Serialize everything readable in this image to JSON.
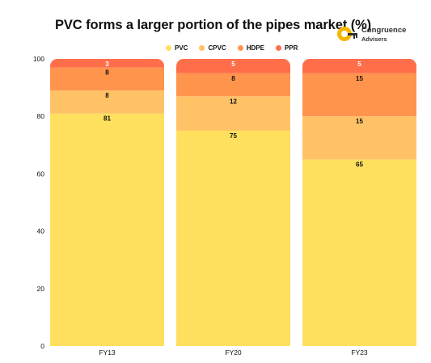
{
  "title": "PVC forms a larger portion of the pipes market (%)",
  "logo": {
    "name": "Congruence",
    "sub": "Advisers",
    "icon": "key-icon"
  },
  "colors": {
    "PVC": "#FFDF5E",
    "CPVC": "#FFC266",
    "HDPE": "#FF944D",
    "PPR": "#FF6E4A"
  },
  "chart_data": {
    "type": "bar",
    "stacked": true,
    "categories": [
      "FY13",
      "FY20",
      "FY23"
    ],
    "series": [
      {
        "name": "PVC",
        "values": [
          81,
          75,
          65
        ]
      },
      {
        "name": "CPVC",
        "values": [
          8,
          12,
          15
        ]
      },
      {
        "name": "HDPE",
        "values": [
          8,
          8,
          15
        ]
      },
      {
        "name": "PPR",
        "values": [
          3,
          5,
          5
        ]
      }
    ],
    "ylim": [
      0,
      100
    ],
    "yticks": [
      0,
      20,
      40,
      60,
      80,
      100
    ],
    "legend": "top-center",
    "grid": false
  }
}
